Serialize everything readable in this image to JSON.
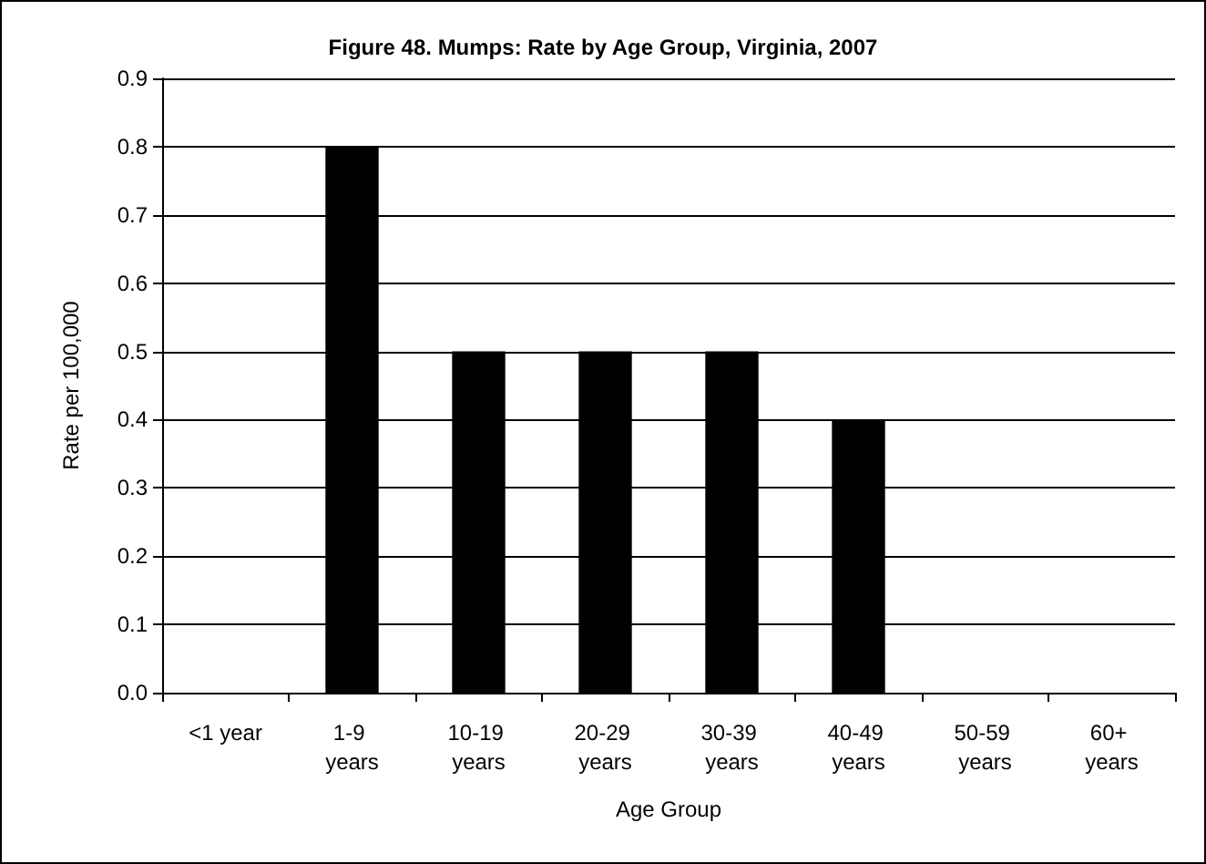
{
  "chart_data": {
    "type": "bar",
    "title": "Figure 48. Mumps: Rate by Age Group, Virginia, 2007",
    "xlabel": "Age Group",
    "ylabel": "Rate per 100,000",
    "categories": [
      "<1 year",
      "1-9 years",
      "10-19 years",
      "20-29 years",
      "30-39 years",
      "40-49 years",
      "50-59 years",
      "60+ years"
    ],
    "values": [
      0,
      0.8,
      0.5,
      0.5,
      0.5,
      0.4,
      0,
      0
    ],
    "color": "#000000",
    "ylim": [
      0,
      0.9
    ],
    "yticks": [
      {
        "value": 0,
        "label": "0.0"
      },
      0.1,
      0.2,
      0.3,
      0.4,
      0.5,
      0.6,
      0.7,
      0.8,
      0.9
    ],
    "grid": "y"
  }
}
